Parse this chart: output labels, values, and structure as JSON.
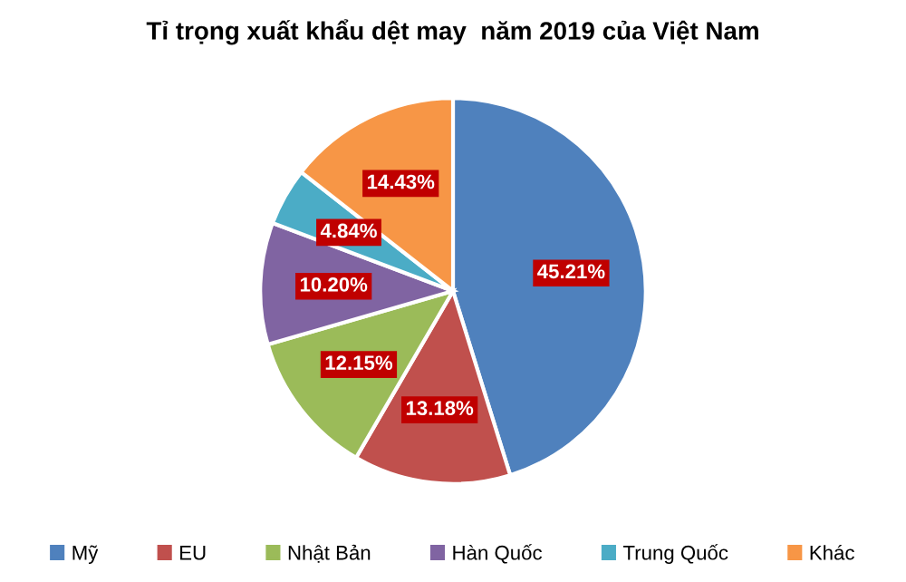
{
  "chart_data": {
    "type": "pie",
    "title": "Tỉ trọng xuất khẩu dệt may  năm 2019 của Việt Nam",
    "categories": [
      "Mỹ",
      "EU",
      "Nhật Bản",
      "Hàn Quốc",
      "Trung Quốc",
      "Khác"
    ],
    "values": [
      45.21,
      13.18,
      12.15,
      10.2,
      4.84,
      14.43
    ],
    "colors": [
      "#4f81bd",
      "#c0504d",
      "#9bbb59",
      "#8064a2",
      "#4bacc6",
      "#f79646"
    ],
    "value_labels": [
      "45.21%",
      "13.18%",
      "12.15%",
      "10.20%",
      "4.84%",
      "14.43%"
    ],
    "legend": "bottom"
  }
}
